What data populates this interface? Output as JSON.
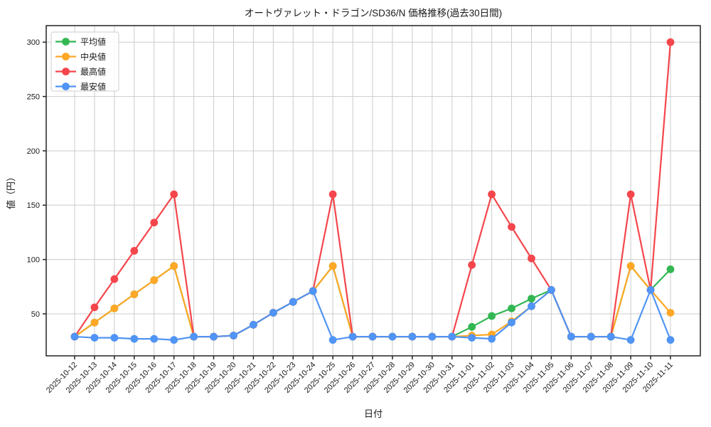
{
  "chart_data": {
    "type": "line",
    "title": "オートヴァレット・ドラゴン/SD36/N 価格推移(過去30日間)",
    "xlabel": "日付",
    "ylabel": "値（円）",
    "x": [
      "2025-10-12",
      "2025-10-13",
      "2025-10-14",
      "2025-10-15",
      "2025-10-16",
      "2025-10-17",
      "2025-10-18",
      "2025-10-19",
      "2025-10-20",
      "2025-10-21",
      "2025-10-22",
      "2025-10-23",
      "2025-10-24",
      "2025-10-25",
      "2025-10-26",
      "2025-10-27",
      "2025-10-28",
      "2025-10-29",
      "2025-10-30",
      "2025-10-31",
      "2025-11-01",
      "2025-11-02",
      "2025-11-03",
      "2025-11-04",
      "2025-11-05",
      "2025-11-06",
      "2025-11-07",
      "2025-11-08",
      "2025-11-09",
      "2025-11-10",
      "2025-11-11"
    ],
    "series": [
      {
        "key": "average",
        "name": "平均値",
        "color": "#33b752",
        "values": [
          29,
          42,
          55,
          68,
          81,
          94,
          29,
          29,
          30,
          40,
          51,
          61,
          71,
          94,
          29,
          29,
          29,
          29,
          29,
          29,
          38,
          48,
          55,
          64,
          72,
          29,
          29,
          29,
          94,
          72,
          91
        ]
      },
      {
        "key": "median",
        "name": "中央値",
        "color": "#ffa726",
        "values": [
          29,
          42,
          55,
          68,
          81,
          94,
          29,
          29,
          30,
          40,
          51,
          61,
          71,
          94,
          29,
          29,
          29,
          29,
          29,
          29,
          30,
          31,
          43,
          57,
          72,
          29,
          29,
          29,
          94,
          72,
          51
        ]
      },
      {
        "key": "max",
        "name": "最高値",
        "color": "#f4464c",
        "values": [
          29,
          56,
          82,
          108,
          134,
          160,
          29,
          29,
          30,
          40,
          51,
          61,
          71,
          160,
          29,
          29,
          29,
          29,
          29,
          29,
          95,
          160,
          130,
          101,
          72,
          29,
          29,
          29,
          160,
          72,
          300
        ]
      },
      {
        "key": "min",
        "name": "最安値",
        "color": "#5094f5",
        "values": [
          29,
          28,
          28,
          27,
          27,
          26,
          29,
          29,
          30,
          40,
          51,
          61,
          71,
          26,
          29,
          29,
          29,
          29,
          29,
          29,
          28,
          27,
          42,
          57,
          72,
          29,
          29,
          29,
          26,
          72,
          26
        ]
      }
    ],
    "yticks": [
      50,
      100,
      150,
      200,
      250,
      300
    ],
    "ylim": [
      11.4,
      315.2
    ],
    "grid": true,
    "grid_color": "#cccccc",
    "legend_position": "upper-left",
    "background": "#ffffff",
    "spine_color": "#222222"
  }
}
